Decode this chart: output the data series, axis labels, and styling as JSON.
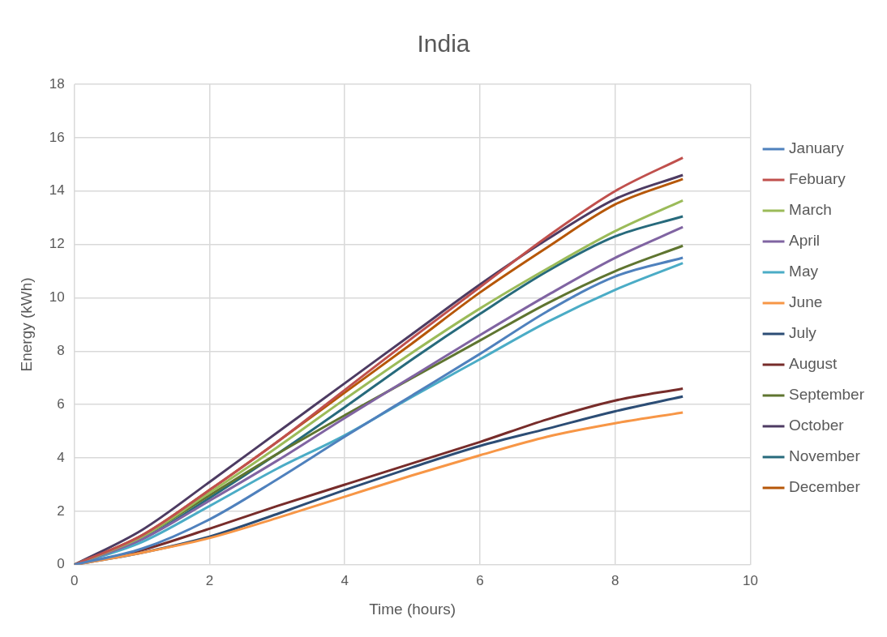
{
  "chart_data": {
    "type": "line",
    "title": "India",
    "xlabel": "Time (hours)",
    "ylabel": "Energy (kWh)",
    "x": [
      0,
      1,
      2,
      3,
      4,
      5,
      6,
      7,
      8,
      9
    ],
    "xlim": [
      0,
      10
    ],
    "xticks": [
      0,
      2,
      4,
      6,
      8,
      10
    ],
    "ylim": [
      0,
      18
    ],
    "yticks": [
      0,
      2,
      4,
      6,
      8,
      10,
      12,
      14,
      16,
      18
    ],
    "grid": true,
    "legend": "right",
    "marker": "none",
    "line_style": "solid",
    "series": [
      {
        "name": "January",
        "color": "#4f81bd",
        "values": [
          0,
          0.6,
          1.7,
          3.2,
          4.8,
          6.35,
          7.9,
          9.5,
          10.8,
          11.5
        ]
      },
      {
        "name": "Febuary",
        "color": "#c0504d",
        "values": [
          0,
          1.1,
          2.8,
          4.6,
          6.55,
          8.5,
          10.4,
          12.3,
          14.0,
          15.25
        ]
      },
      {
        "name": "March",
        "color": "#9bbb59",
        "values": [
          0,
          1.05,
          2.7,
          4.4,
          6.2,
          7.95,
          9.6,
          11.1,
          12.5,
          13.65
        ]
      },
      {
        "name": "April",
        "color": "#8064a2",
        "values": [
          0,
          0.95,
          2.4,
          3.9,
          5.5,
          7.05,
          8.6,
          10.1,
          11.5,
          12.65
        ]
      },
      {
        "name": "May",
        "color": "#4bacc6",
        "values": [
          0,
          0.85,
          2.2,
          3.6,
          4.85,
          6.3,
          7.7,
          9.1,
          10.3,
          11.3
        ]
      },
      {
        "name": "June",
        "color": "#f79646",
        "values": [
          0,
          0.45,
          1.0,
          1.75,
          2.55,
          3.35,
          4.1,
          4.8,
          5.3,
          5.7
        ]
      },
      {
        "name": "July",
        "color": "#2c4d75",
        "values": [
          0,
          0.45,
          1.05,
          1.9,
          2.8,
          3.65,
          4.45,
          5.1,
          5.75,
          6.3
        ]
      },
      {
        "name": "August",
        "color": "#772c2a",
        "values": [
          0,
          0.55,
          1.35,
          2.2,
          3.0,
          3.8,
          4.6,
          5.45,
          6.15,
          6.6
        ]
      },
      {
        "name": "September",
        "color": "#5f7530",
        "values": [
          0,
          1.05,
          2.6,
          4.15,
          5.6,
          7.0,
          8.4,
          9.8,
          11.0,
          11.95
        ]
      },
      {
        "name": "October",
        "color": "#4d3b62",
        "values": [
          0,
          1.3,
          3.1,
          4.95,
          6.8,
          8.65,
          10.5,
          12.2,
          13.7,
          14.6
        ]
      },
      {
        "name": "November",
        "color": "#276a7c",
        "values": [
          0,
          0.95,
          2.5,
          4.15,
          5.9,
          7.7,
          9.4,
          11.0,
          12.3,
          13.05
        ]
      },
      {
        "name": "December",
        "color": "#b65708",
        "values": [
          0,
          1.1,
          2.8,
          4.6,
          6.45,
          8.3,
          10.2,
          11.9,
          13.5,
          14.45
        ]
      }
    ]
  }
}
